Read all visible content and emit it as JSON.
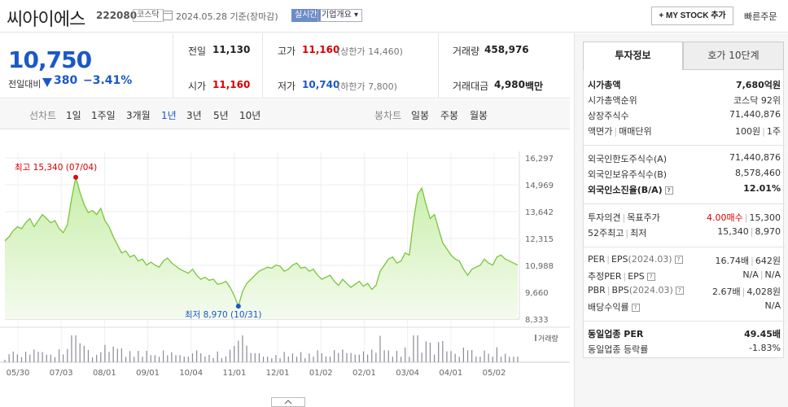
{
  "header": {
    "stock_name": "씨아이에스",
    "stock_code": "222080",
    "market": "코스닥",
    "date_text": "2024.05.28  기준(장마감)",
    "realtime": "실시간",
    "company_overview": "기업개요 ▾",
    "my_stock": "+ MY STOCK 추가",
    "quick_order": "빠른주문"
  },
  "price": {
    "current": "10,750",
    "diff_label": "전일대비",
    "diff_value": "380",
    "diff_pct": "−3.41%",
    "prev_label": "전일",
    "prev": "11,130",
    "high_label": "고가",
    "high": "11,160",
    "upper_limit": "(상한가 14,460)",
    "volume_label": "거래량",
    "volume": "458,976",
    "open_label": "시가",
    "open": "11,160",
    "low_label": "저가",
    "low": "10,740",
    "lower_limit": "(하한가 7,800)",
    "amount_label": "거래대금",
    "amount": "4,980",
    "amount_unit": "백만"
  },
  "period_tabs": {
    "line_label": "선차트",
    "line": [
      "1일",
      "1주일",
      "3개월",
      "1년",
      "3년",
      "5년",
      "10년"
    ],
    "active": "1년",
    "candle_label": "봉차트",
    "candle": [
      "일봉",
      "주봉",
      "월봉"
    ]
  },
  "chart_data": {
    "type": "area",
    "x_ticks": [
      "05/30",
      "07/03",
      "08/01",
      "09/01",
      "10/04",
      "11/01",
      "12/01",
      "01/02",
      "02/01",
      "03/04",
      "04/01",
      "05/02"
    ],
    "y_ticks": [
      16297,
      14969,
      13642,
      12315,
      10988,
      9660,
      8333
    ],
    "ylim": [
      8333,
      16297
    ],
    "high_label": "최고 15,340 (07/04)",
    "low_label": "최저 8,970 (10/31)",
    "high": 15340,
    "low": 8970,
    "volume_legend": "거래량",
    "grid": true,
    "line_color": "#79c63a",
    "fill_color": "#c8eea8",
    "values": [
      12200,
      12400,
      12700,
      12900,
      12800,
      13100,
      13300,
      12900,
      13200,
      13500,
      13300,
      13100,
      13200,
      12800,
      12600,
      13000,
      14300,
      15340,
      14600,
      14000,
      13600,
      13700,
      13500,
      13800,
      13200,
      12900,
      12400,
      12000,
      11600,
      11700,
      11400,
      11500,
      11200,
      11300,
      11000,
      11150,
      11000,
      10900,
      11200,
      11350,
      11100,
      10950,
      10800,
      10700,
      10600,
      10800,
      10500,
      10300,
      10400,
      10250,
      10300,
      10050,
      10100,
      10200,
      9900,
      9500,
      8970,
      9700,
      10100,
      10300,
      10500,
      10700,
      10800,
      10900,
      10850,
      11000,
      10950,
      10700,
      10800,
      11000,
      11100,
      10850,
      10900,
      10700,
      10800,
      10500,
      10300,
      10400,
      10500,
      10200,
      10000,
      10300,
      10100,
      9900,
      10050,
      10200,
      9950,
      10100,
      9800,
      10000,
      10700,
      11000,
      11300,
      11400,
      11100,
      11200,
      11600,
      11500,
      13200,
      14500,
      14800,
      14000,
      13300,
      13500,
      12800,
      12100,
      11800,
      11500,
      11300,
      11200,
      10800,
      10500,
      10800,
      10900,
      11000,
      11300,
      11100,
      11000,
      11400,
      11500,
      11300,
      11200,
      11100,
      11000
    ]
  },
  "right_panel": {
    "tab_invest": "투자정보",
    "tab_ask": "호가 10단계",
    "rows1": [
      {
        "k": "시가총액",
        "v": "7,680억원"
      },
      {
        "k": "시가총액순위",
        "v": "코스닥 92위"
      },
      {
        "k": "상장주식수",
        "v": "71,440,876"
      },
      {
        "k": "액면가",
        "k2": "매매단위",
        "v": "100원",
        "v2": "1주"
      }
    ],
    "rows2": [
      {
        "k": "외국인한도주식수(A)",
        "v": "71,440,876"
      },
      {
        "k": "외국인보유주식수(B)",
        "v": "8,578,460"
      },
      {
        "k": "외국인소진율(B/A)",
        "v": "12.01%"
      }
    ],
    "opinion_k": "투자의견",
    "target_k": "목표주가",
    "opinion_v": "4.00매수",
    "target_v": "15,300",
    "w52_k": "52주최고",
    "w52_k2": "최저",
    "w52_v": "15,340",
    "w52_v2": "8,970",
    "per_k": "PER",
    "eps_k": "EPS",
    "eps_period": "(2024.03)",
    "per_v": "16.74배",
    "eps_v": "642원",
    "est_per_k": "추정PER",
    "est_eps_k": "EPS",
    "est_per_v": "N/A",
    "est_eps_v": "N/A",
    "pbr_k": "PBR",
    "bps_k": "BPS",
    "bps_period": "(2024.03)",
    "pbr_v": "2.67배",
    "bps_v": "4,028원",
    "div_k": "배당수익률",
    "div_v": "N/A",
    "ind_per_k": "동일업종 PER",
    "ind_per_v": "49.45배",
    "ind_rate_k": "동일업종 등락률",
    "ind_rate_v": "-1.83%"
  }
}
